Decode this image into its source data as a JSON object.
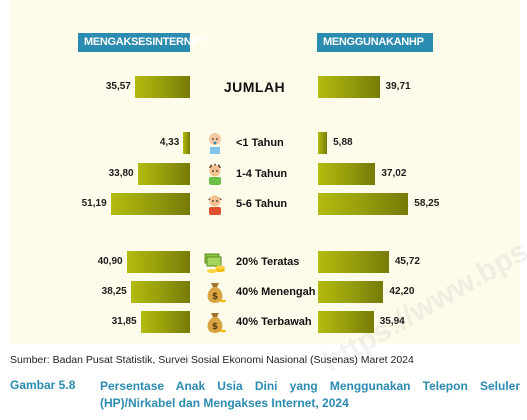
{
  "headers": {
    "left": "MENGAKSESINTERNET",
    "right": "MENGGUNAKANHP"
  },
  "source": "Sumber: Badan Pusat Statistik, Survei Sosial Ekonomi Nasional (Susenas) Maret 2024",
  "figure": {
    "number": "Gambar 5.8",
    "title": "Persentase Anak Usia Dini yang Menggunakan Telepon Seluler (HP)/Nirkabel dan Mengakses Internet, 2024"
  },
  "watermark": "https://www.bps.go.id",
  "chart_data": {
    "type": "bar",
    "orientation": "horizontal-butterfly",
    "categories": [
      "JUMLAH",
      "<1 Tahun",
      "1-4 Tahun",
      "5-6 Tahun",
      "20% Teratas",
      "40% Menengah",
      "40% Terbawah"
    ],
    "icons": [
      "",
      "baby-icon",
      "toddler-icon",
      "child-icon",
      "money-stack-icon",
      "money-bag-icon",
      "money-bag-icon"
    ],
    "series": [
      {
        "name": "MENGAKSESINTERNET",
        "values": [
          35.57,
          4.33,
          33.8,
          51.19,
          40.9,
          38.25,
          31.85
        ],
        "labels": [
          "35,57",
          "4,33",
          "33,80",
          "51,19",
          "40,90",
          "38,25",
          "31,85"
        ]
      },
      {
        "name": "MENGGUNAKANHP",
        "values": [
          39.71,
          5.88,
          37.02,
          58.25,
          45.72,
          42.2,
          35.94
        ],
        "labels": [
          "39,71",
          "5,88",
          "37,02",
          "58,25",
          "45,72",
          "42,20",
          "35,94"
        ]
      }
    ],
    "colors": {
      "bar": "#969d0b",
      "header": "#2b8bb1",
      "background": "#fdfbe9",
      "title": "#2b8bb1"
    }
  }
}
